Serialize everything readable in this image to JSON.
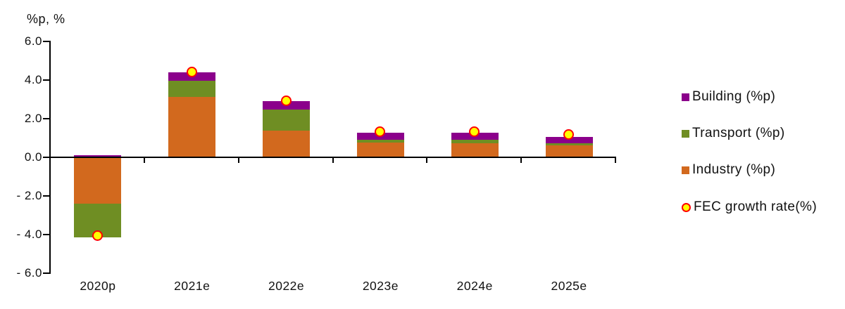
{
  "chart_data": {
    "type": "bar",
    "stacked": true,
    "axis_unit_label": "%p, %",
    "categories": [
      "2020p",
      "2021e",
      "2022e",
      "2023e",
      "2024e",
      "2025e"
    ],
    "series": [
      {
        "name": "Industry (%p)",
        "color": "#D2691E",
        "values": [
          -2.4,
          3.1,
          1.35,
          0.75,
          0.7,
          0.6
        ]
      },
      {
        "name": "Transport (%p)",
        "color": "#6F8E23",
        "values": [
          -1.75,
          0.85,
          1.1,
          0.15,
          0.18,
          0.12
        ]
      },
      {
        "name": "Building (%p)",
        "color": "#8B008B",
        "values": [
          0.1,
          0.45,
          0.45,
          0.35,
          0.37,
          0.33
        ]
      }
    ],
    "marker_series": {
      "name": "FEC growth rate(%)",
      "fill": "#FFFF00",
      "stroke": "#FF0000",
      "values": [
        -4.1,
        4.4,
        2.9,
        1.3,
        1.3,
        1.15
      ]
    },
    "ylim": [
      -6,
      6
    ],
    "ytick_values": [
      6,
      4,
      2,
      0,
      -2,
      -4,
      -6
    ],
    "ytick_labels": [
      "6.0",
      "4.0",
      "2.0",
      "0.0",
      "- 2.0",
      "- 4.0",
      "- 6.0"
    ],
    "grid": false,
    "legend_position": "right",
    "axis_color": "#000000"
  },
  "legend": {
    "building_label": "Building (%p)",
    "transport_label": "Transport (%p)",
    "industry_label": "Industry (%p)",
    "fec_label": "FEC growth rate(%)"
  }
}
